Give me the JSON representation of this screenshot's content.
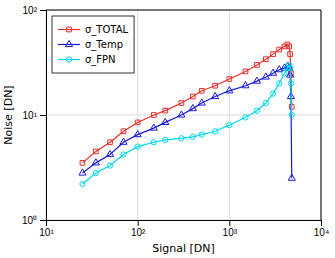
{
  "chart_data": {
    "type": "line",
    "xlabel": "Signal [DN]",
    "ylabel": "Noise [DN]",
    "log": true,
    "xlim": [
      10,
      10000
    ],
    "ylim": [
      1,
      100
    ],
    "xticks": [
      {
        "value": 10,
        "label": "10¹"
      },
      {
        "value": 100,
        "label": "10²"
      },
      {
        "value": 1000,
        "label": "10³"
      },
      {
        "value": 10000,
        "label": "10⁴"
      }
    ],
    "yticks": [
      {
        "value": 1,
        "label": "10⁰"
      },
      {
        "value": 10,
        "label": "10¹"
      },
      {
        "value": 100,
        "label": "10²"
      }
    ],
    "grid": true,
    "legend": "upper-left",
    "x": [
      25,
      35,
      50,
      70,
      100,
      150,
      200,
      300,
      400,
      500,
      700,
      1000,
      1500,
      2000,
      2500,
      3000,
      3500,
      4000,
      4300,
      4500,
      4600,
      4700,
      4800
    ],
    "series": [
      {
        "name": "σ_TOTAL",
        "color": "#e8302a",
        "marker": "square",
        "values": [
          3.5,
          4.5,
          5.5,
          7.0,
          8.5,
          10,
          11,
          13,
          15,
          17,
          19,
          22,
          26,
          30,
          34,
          38,
          42,
          45,
          47,
          45,
          38,
          25,
          12
        ]
      },
      {
        "name": "σ_Temp",
        "color": "#1a1adc",
        "marker": "triangle",
        "values": [
          2.8,
          3.5,
          4.2,
          5.5,
          6.5,
          7.5,
          8.5,
          10,
          11.5,
          13,
          15,
          17,
          19,
          21,
          23,
          25,
          27,
          28,
          29,
          28,
          24,
          15,
          2.5
        ]
      },
      {
        "name": "σ_FPN",
        "color": "#00d8e8",
        "marker": "circle",
        "values": [
          2.2,
          2.8,
          3.3,
          4.2,
          5.0,
          5.5,
          5.8,
          6.0,
          6.2,
          6.5,
          7.0,
          8.0,
          9.5,
          11,
          13,
          16,
          20,
          25,
          28,
          30,
          28,
          20,
          10
        ]
      }
    ]
  }
}
